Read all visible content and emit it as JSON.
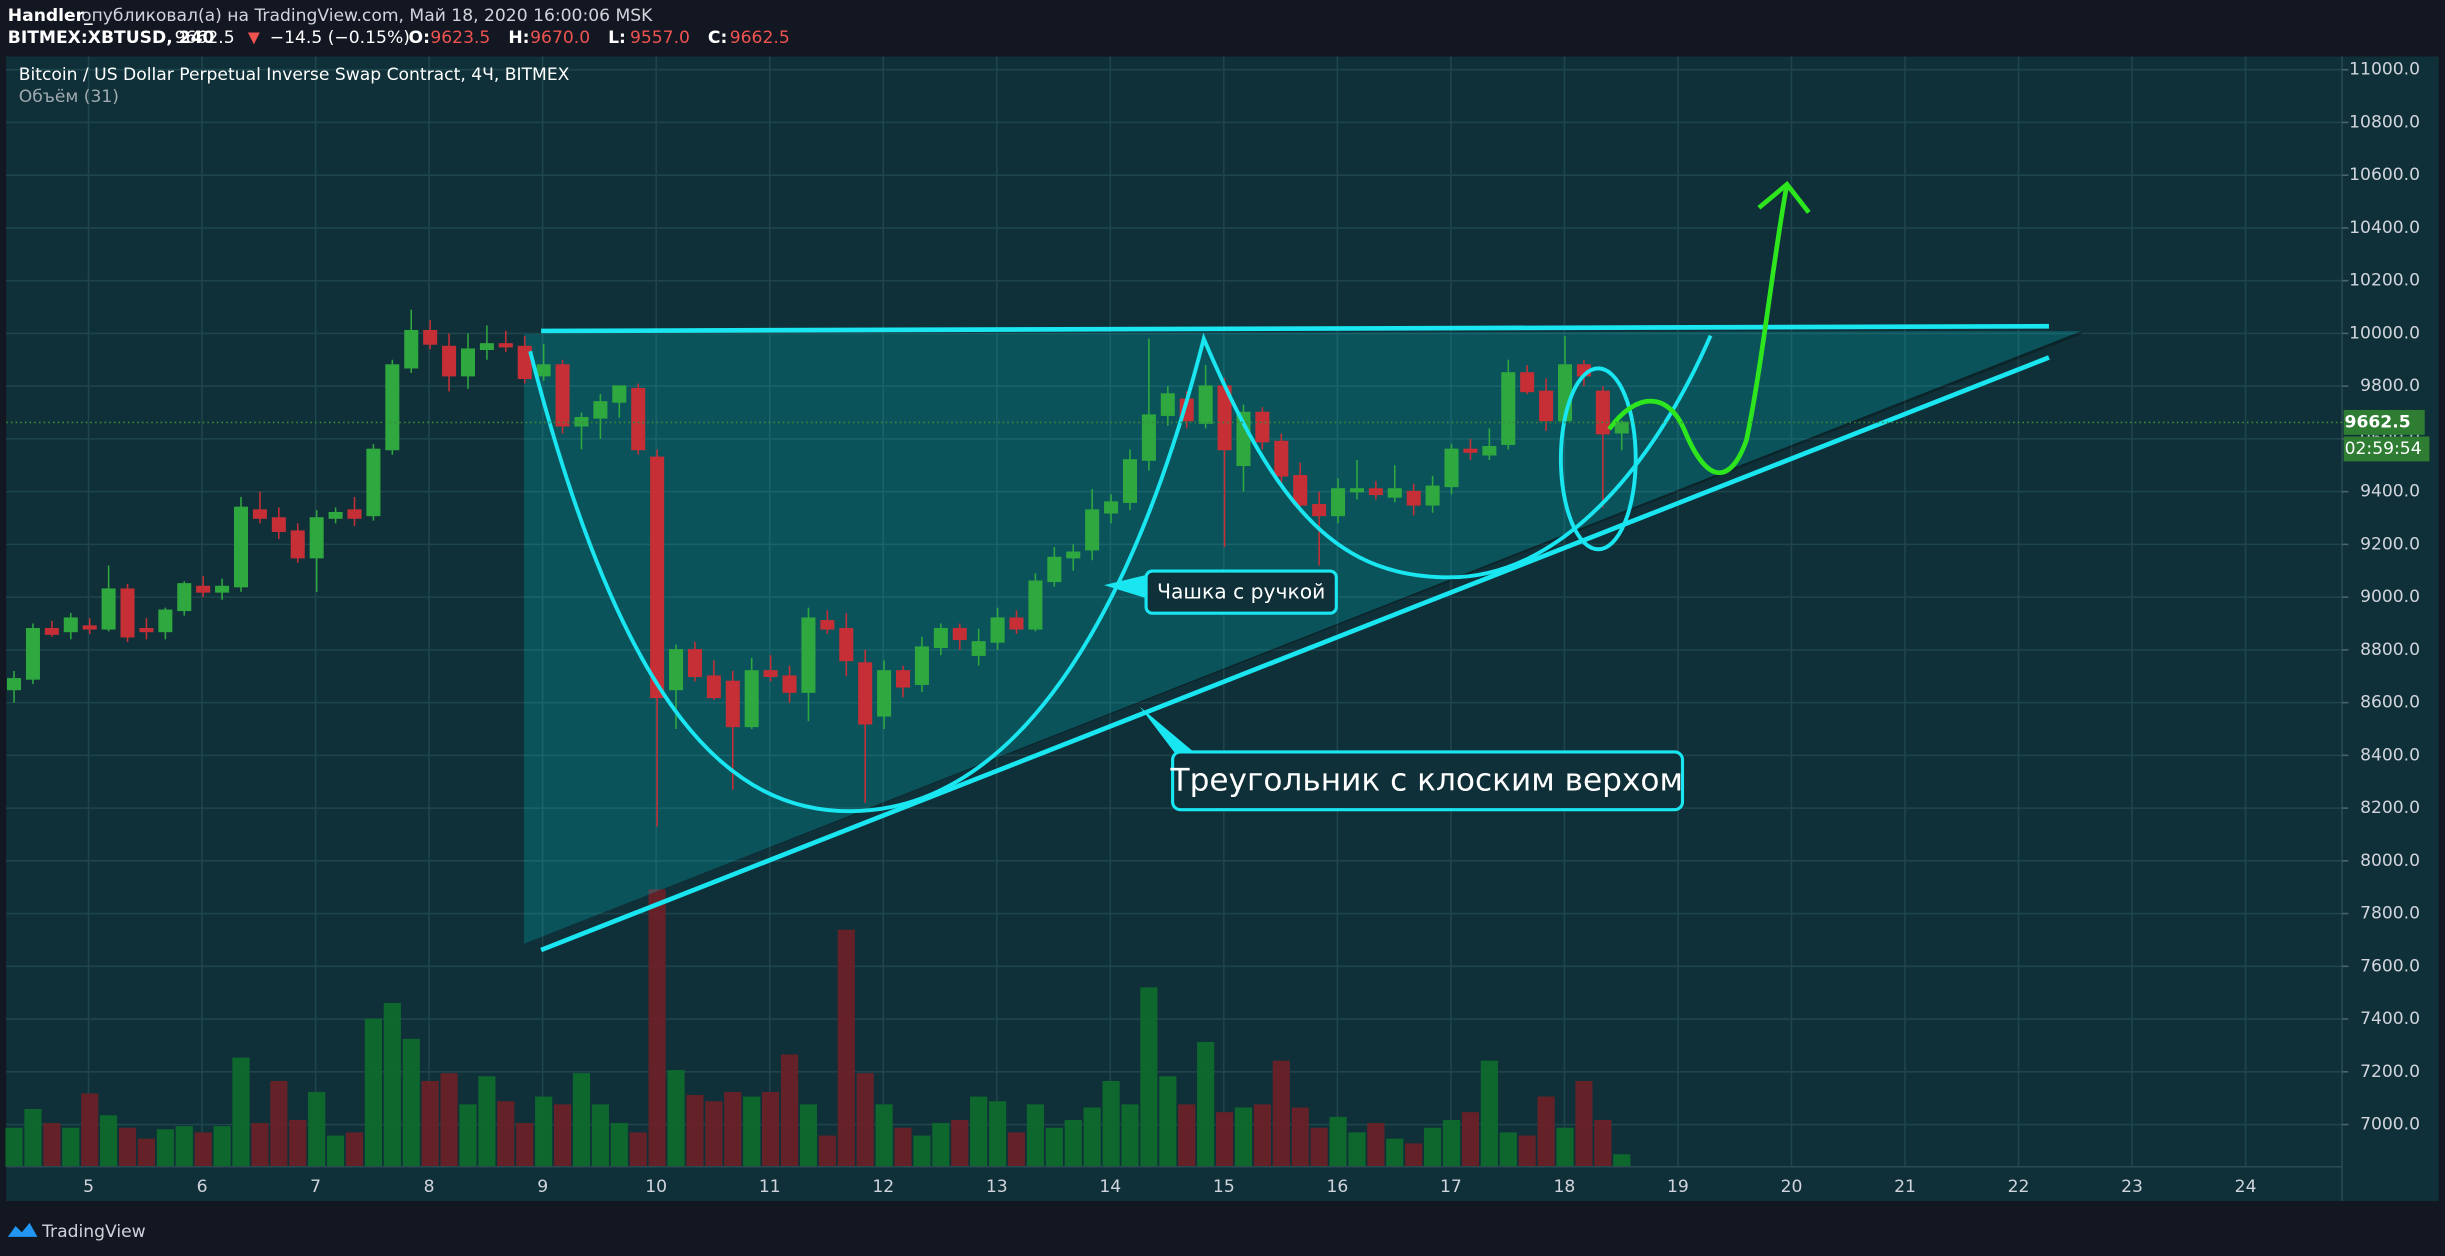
{
  "header": {
    "author": "Handler_",
    "published": "опубликовал(а) на TradingView.com, Май 18, 2020 16:00:06 MSK",
    "symbol": "BITMEX:XBTUSD, 240",
    "price": "9662.5",
    "change_arrow": "▼",
    "change": "−14.5 (−0.15%)",
    "ohlc": [
      {
        "label": "O:",
        "value": "9623.5"
      },
      {
        "label": "H:",
        "value": "9670.0"
      },
      {
        "label": "L:",
        "value": "9557.0"
      },
      {
        "label": "C:",
        "value": "9662.5"
      }
    ]
  },
  "chart_data": {
    "type": "candlestick",
    "title": "Bitcoin / US Dollar Perpetual Inverse Swap Contract, 4Ч, BITMEX",
    "volume_label": "Объём (31)",
    "up_color": "#2fa83f",
    "down_color": "#c62f36",
    "open": [
      8650,
      8690,
      8880,
      8870,
      8890,
      8880,
      9030,
      8880,
      8870,
      8950,
      9040,
      9020,
      9040,
      9330,
      9300,
      9250,
      9150,
      9300,
      9330,
      9310,
      9560,
      9870,
      10010,
      9950,
      9840,
      9940,
      9960,
      9950,
      9840,
      9880,
      9650,
      9680,
      9740,
      9790,
      9530,
      8650,
      8800,
      8700,
      8680,
      8510,
      8720,
      8700,
      8640,
      8910,
      8880,
      8750,
      8550,
      8720,
      8670,
      8810,
      8880,
      8780,
      8830,
      8920,
      8880,
      9060,
      9150,
      9180,
      9320,
      9360,
      9520,
      9690,
      9750,
      9660,
      9800,
      9500,
      9700,
      9590,
      9460,
      9350,
      9310,
      9400,
      9410,
      9380,
      9400,
      9350,
      9420,
      9560,
      9540,
      9580,
      9850,
      9780,
      9670,
      9880,
      9780,
      9623.5
    ],
    "high": [
      8720,
      8900,
      8910,
      8940,
      8920,
      9120,
      9050,
      8920,
      8960,
      9060,
      9080,
      9070,
      9380,
      9400,
      9340,
      9280,
      9330,
      9340,
      9380,
      9580,
      9900,
      10090,
      10050,
      10000,
      10000,
      10030,
      10010,
      9990,
      9960,
      9900,
      9700,
      9770,
      9800,
      9810,
      9560,
      8820,
      8830,
      8760,
      8720,
      8770,
      8780,
      8740,
      8960,
      8950,
      8940,
      8800,
      8760,
      8740,
      8850,
      8900,
      8900,
      8880,
      8960,
      8950,
      9090,
      9190,
      9200,
      9410,
      9390,
      9560,
      9980,
      9800,
      9780,
      9880,
      9830,
      9730,
      9720,
      9620,
      9510,
      9400,
      9450,
      9520,
      9440,
      9500,
      9430,
      9460,
      9580,
      9600,
      9640,
      9900,
      9880,
      9830,
      9990,
      9900,
      9800,
      9670
    ],
    "low": [
      8600,
      8670,
      8850,
      8840,
      8860,
      8870,
      8830,
      8840,
      8840,
      8930,
      9000,
      8990,
      9020,
      9280,
      9220,
      9130,
      9020,
      9280,
      9270,
      9290,
      9540,
      9850,
      9940,
      9780,
      9790,
      9900,
      9930,
      9810,
      9820,
      9620,
      9560,
      9600,
      9680,
      9540,
      8130,
      8500,
      8680,
      8610,
      8270,
      8500,
      8680,
      8600,
      8530,
      8860,
      8700,
      8220,
      8500,
      8620,
      8640,
      8780,
      8800,
      8740,
      8800,
      8860,
      8870,
      9040,
      9100,
      9140,
      9280,
      9330,
      9480,
      9650,
      9640,
      9640,
      9190,
      9400,
      9560,
      9430,
      9320,
      9120,
      9280,
      9370,
      9370,
      9360,
      9310,
      9320,
      9390,
      9520,
      9520,
      9560,
      9770,
      9630,
      9650,
      9800,
      9340,
      9557
    ],
    "close": [
      8690,
      8880,
      8860,
      8920,
      8880,
      9030,
      8850,
      8870,
      8950,
      9050,
      9020,
      9040,
      9340,
      9300,
      9250,
      9150,
      9300,
      9320,
      9300,
      9560,
      9880,
      10010,
      9960,
      9840,
      9940,
      9960,
      9950,
      9830,
      9880,
      9650,
      9680,
      9740,
      9800,
      9560,
      8620,
      8800,
      8700,
      8620,
      8510,
      8720,
      8700,
      8640,
      8920,
      8880,
      8760,
      8520,
      8720,
      8660,
      8810,
      8880,
      8840,
      8830,
      8920,
      8880,
      9060,
      9150,
      9170,
      9330,
      9360,
      9520,
      9690,
      9770,
      9670,
      9800,
      9560,
      9700,
      9590,
      9460,
      9350,
      9310,
      9410,
      9410,
      9390,
      9410,
      9350,
      9420,
      9560,
      9550,
      9570,
      9850,
      9780,
      9670,
      9880,
      9840,
      9620,
      9662.5
    ],
    "volume": [
      25,
      37,
      28,
      25,
      47,
      33,
      25,
      18,
      24,
      26,
      22,
      26,
      70,
      28,
      55,
      30,
      48,
      20,
      22,
      95,
      105,
      82,
      55,
      60,
      40,
      58,
      42,
      28,
      45,
      40,
      60,
      40,
      28,
      22,
      178,
      62,
      46,
      42,
      48,
      45,
      48,
      72,
      40,
      20,
      152,
      60,
      40,
      25,
      20,
      28,
      30,
      45,
      42,
      22,
      40,
      25,
      30,
      38,
      55,
      40,
      115,
      58,
      40,
      80,
      35,
      38,
      40,
      68,
      38,
      25,
      32,
      22,
      28,
      18,
      15,
      25,
      30,
      35,
      68,
      22,
      20,
      45,
      25,
      55,
      30,
      8
    ],
    "ylim": [
      6840,
      11050
    ],
    "yticks": [
      {
        "value": 7000,
        "label": "7000.0"
      },
      {
        "value": 7200,
        "label": "7200.0"
      },
      {
        "value": 7400,
        "label": "7400.0"
      },
      {
        "value": 7600,
        "label": "7600.0"
      },
      {
        "value": 7800,
        "label": "7800.0"
      },
      {
        "value": 8000,
        "label": "8000.0"
      },
      {
        "value": 8200,
        "label": "8200.0"
      },
      {
        "value": 8400,
        "label": "8400.0"
      },
      {
        "value": 8600,
        "label": "8600.0"
      },
      {
        "value": 8800,
        "label": "8800.0"
      },
      {
        "value": 9000,
        "label": "9000.0"
      },
      {
        "value": 9200,
        "label": "9200.0"
      },
      {
        "value": 9400,
        "label": "9400.0"
      },
      {
        "value": 9600,
        "label": "9600.0"
      },
      {
        "value": 9800,
        "label": "9800.0"
      },
      {
        "value": 10000,
        "label": "10000.0"
      },
      {
        "value": 10200,
        "label": "10200.0"
      },
      {
        "value": 10400,
        "label": "10400.0"
      },
      {
        "value": 10600,
        "label": "10600.0"
      },
      {
        "value": 10800,
        "label": "10800.0"
      },
      {
        "value": 11000,
        "label": "11000.0"
      }
    ],
    "xlim": [
      4.22,
      24.85
    ],
    "xticks": [
      5,
      6,
      7,
      8,
      9,
      10,
      11,
      12,
      13,
      14,
      15,
      16,
      17,
      18,
      19,
      20,
      21,
      22,
      23,
      24
    ],
    "grid": true,
    "last_price": 9662.5,
    "timer": "02:59:54",
    "annotations": [
      "Чашка с ручкой",
      "Треугольник с клоским верхом"
    ]
  },
  "footer": {
    "brand": "TradingView"
  }
}
